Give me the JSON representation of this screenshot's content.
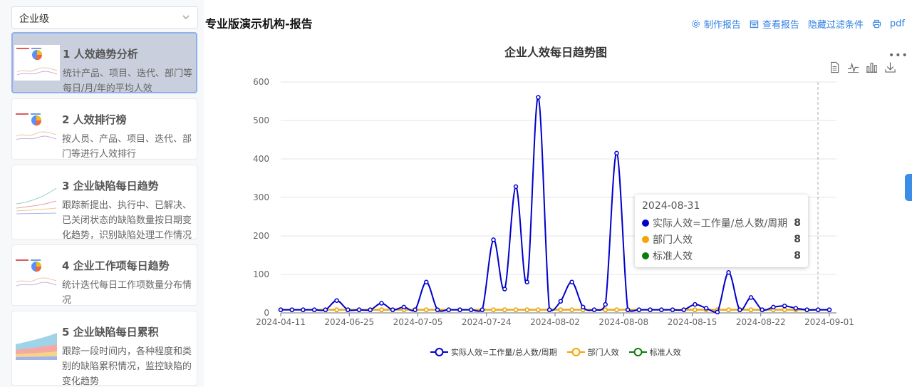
{
  "sidebar": {
    "level_select": "企业级",
    "cards": [
      {
        "title": "1 人效趋势分析",
        "desc": "统计产品、项目、迭代、部门等每日/月/年的平均人效"
      },
      {
        "title": "2 人效排行榜",
        "desc": "按人员、产品、项目、迭代、部门等进行人效排行"
      },
      {
        "title": "3 企业缺陷每日趋势",
        "desc": "跟踪新提出、执行中、已解决、已关闭状态的缺陷数量按日期变化趋势，识别缺陷处理工作情况"
      },
      {
        "title": "4 企业工作项每日趋势",
        "desc": "统计迭代每日工作项数量分布情况"
      },
      {
        "title": "5 企业缺陷每日累积",
        "desc": "跟踪一段时间内，各种程度和类别的缺陷累积情况，监控缺陷的变化趋势"
      }
    ]
  },
  "header": {
    "title": "专业版演示机构-报告",
    "toolbar": {
      "make": "制作报告",
      "view": "查看报告",
      "hide": "隐藏过滤条件",
      "pdf": "pdf"
    }
  },
  "chart_data": {
    "type": "line",
    "title": "企业人效每日趋势图",
    "x_ticks": [
      "2024-04-11",
      "2024-06-25",
      "2024-07-05",
      "2024-07-24",
      "2024-08-02",
      "2024-08-08",
      "2024-08-15",
      "2024-08-22",
      "2024-09-01"
    ],
    "ylim": [
      0,
      600
    ],
    "y_ticks": [
      0,
      100,
      200,
      300,
      400,
      500,
      600
    ],
    "grid": true,
    "legend_position": "bottom",
    "series": [
      {
        "name": "实际人效=工作量/总人数/周期",
        "color": "#0000cc",
        "values": [
          8,
          8,
          8,
          8,
          8,
          32,
          8,
          8,
          8,
          25,
          8,
          15,
          8,
          80,
          8,
          8,
          8,
          8,
          8,
          190,
          62,
          328,
          80,
          560,
          8,
          30,
          80,
          15,
          8,
          22,
          415,
          8,
          8,
          8,
          8,
          8,
          8,
          22,
          12,
          2,
          105,
          8,
          40,
          8,
          15,
          18,
          12,
          8,
          8,
          8
        ]
      },
      {
        "name": "部门人效",
        "color": "#f5a400",
        "values": [
          8,
          8,
          8,
          8,
          8,
          8,
          8,
          8,
          8,
          8,
          8,
          8,
          8,
          8,
          8,
          8,
          8,
          8,
          8,
          8,
          8,
          8,
          8,
          8,
          8,
          8,
          8,
          8,
          8,
          8,
          8,
          8,
          8,
          8,
          8,
          8,
          8,
          8,
          8,
          8,
          8,
          8,
          8,
          8,
          8,
          8,
          8,
          8,
          8,
          8
        ]
      },
      {
        "name": "标准人效",
        "color": "#0a7d0a",
        "values": [
          8,
          8,
          8,
          8,
          8,
          8,
          8,
          8,
          8,
          8,
          8,
          8,
          8,
          8,
          8,
          8,
          8,
          8,
          8,
          8,
          8,
          8,
          8,
          8,
          8,
          8,
          8,
          8,
          8,
          8,
          8,
          8,
          8,
          8,
          8,
          8,
          8,
          8,
          8,
          8,
          8,
          8,
          8,
          8,
          8,
          8,
          8,
          8,
          8,
          8
        ]
      }
    ],
    "tooltip": {
      "date": "2024-08-31",
      "rows": [
        {
          "name": "实际人效=工作量/总人数/周期",
          "value": "8",
          "color": "#0000cc"
        },
        {
          "name": "部门人效",
          "value": "8",
          "color": "#f5a400"
        },
        {
          "name": "标准人效",
          "value": "8",
          "color": "#0a7d0a"
        }
      ]
    }
  }
}
